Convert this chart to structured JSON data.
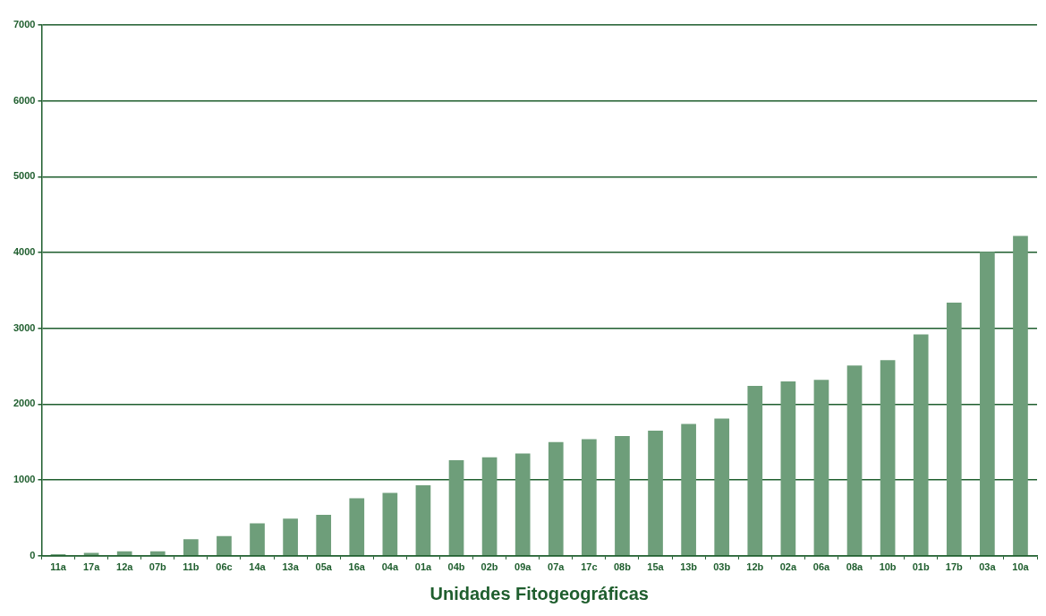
{
  "chart_data": {
    "type": "bar",
    "xlabel": "Unidades Fitogeográficas",
    "categories": [
      "11a",
      "17a",
      "12a",
      "07b",
      "11b",
      "06c",
      "14a",
      "13a",
      "05a",
      "16a",
      "04a",
      "01a",
      "04b",
      "02b",
      "09a",
      "07a",
      "17c",
      "08b",
      "15a",
      "13b",
      "03b",
      "12b",
      "02a",
      "06a",
      "08a",
      "10b",
      "01b",
      "17b",
      "03a",
      "10a"
    ],
    "values": [
      20,
      40,
      60,
      60,
      220,
      260,
      430,
      490,
      540,
      760,
      830,
      930,
      1260,
      1300,
      1350,
      1500,
      1540,
      1580,
      1650,
      1740,
      1810,
      2240,
      2300,
      2320,
      2510,
      2580,
      2920,
      3340,
      4010,
      4220
    ],
    "color": "#6e9e7a",
    "ylim": [
      0,
      7000
    ],
    "yticks": [
      0,
      1000,
      2000,
      3000,
      4000,
      5000,
      6000,
      7000
    ],
    "grid": "y"
  }
}
